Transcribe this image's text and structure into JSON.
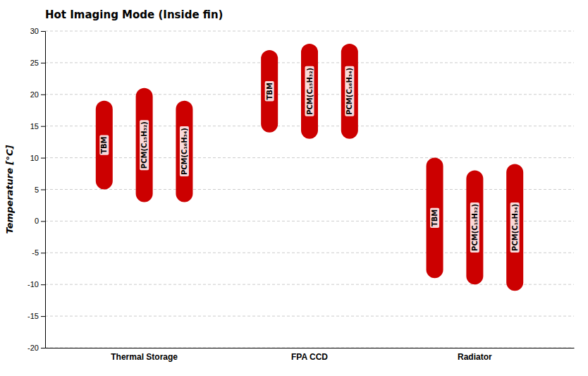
{
  "chart_data": {
    "type": "bar",
    "title": "Hot Imaging Mode (Inside fin)",
    "ylabel": "Temperature [°C]",
    "categories": [
      "Thermal Storage",
      "FPA CCD",
      "Radiator"
    ],
    "series": [
      {
        "name": "TBM",
        "values": [
          [
            5,
            19
          ],
          [
            14,
            27
          ],
          [
            -9,
            10
          ]
        ]
      },
      {
        "name": "PCM(C₁₅H₃₂)",
        "values": [
          [
            3,
            21
          ],
          [
            13,
            28
          ],
          [
            -10,
            8
          ]
        ]
      },
      {
        "name": "PCM(C₁₆H₃₄)",
        "values": [
          [
            3,
            19
          ],
          [
            13,
            28
          ],
          [
            -11,
            9
          ]
        ]
      }
    ],
    "color": "#cc0000",
    "ylim": [
      -20,
      30
    ],
    "yticks": [
      -20,
      -15,
      -10,
      -5,
      0,
      5,
      10,
      15,
      20,
      25,
      30
    ],
    "grid": true
  }
}
